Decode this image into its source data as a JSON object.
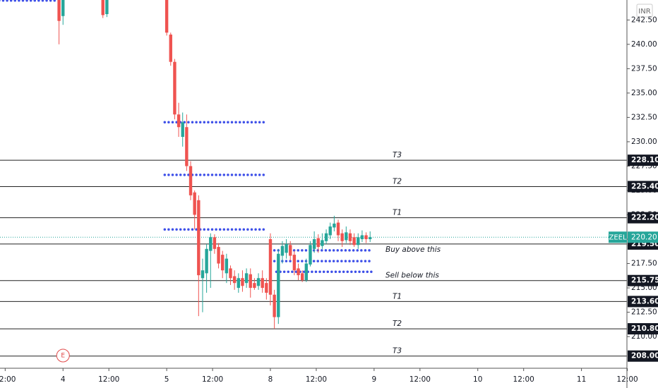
{
  "chart_data": {
    "type": "candlestick",
    "currency": "INR",
    "x": [
      -27,
      -26,
      -16,
      -15,
      0,
      1,
      2,
      3,
      4,
      5,
      6,
      7,
      8,
      9,
      10,
      11,
      12,
      13,
      14,
      15,
      16,
      17,
      18,
      19,
      20,
      21,
      22,
      23,
      24,
      25,
      26,
      27,
      28,
      29,
      30,
      31,
      32,
      33,
      34,
      35,
      36,
      37,
      38,
      39,
      40,
      41,
      42,
      43,
      44,
      45,
      46,
      47,
      48,
      49,
      50,
      51
    ],
    "open": [
      245,
      242.9,
      245,
      243.1,
      245,
      241,
      238.2,
      232.8,
      230.5,
      231.5,
      227.5,
      224.8,
      224,
      216,
      216.5,
      218.8,
      220.2,
      219.2,
      218.4,
      216.5,
      217,
      216.2,
      215,
      216,
      215.5,
      216.4,
      215.5,
      215.2,
      216,
      215.5,
      220,
      214.3,
      212,
      218.3,
      218.6,
      219.4,
      218.4,
      217,
      216.5,
      215.8,
      217.4,
      219,
      220.1,
      219.3,
      219.8,
      220.4,
      221.2,
      221.7,
      220.6,
      219.9,
      220.6,
      220.2,
      219.4,
      220,
      220.4,
      220
    ],
    "high": [
      245.5,
      245.5,
      245.5,
      245.5,
      245.5,
      241.2,
      238.5,
      234,
      233,
      232.8,
      228,
      225,
      224.5,
      218,
      219.5,
      220.6,
      220.5,
      219.6,
      218.8,
      218.5,
      217.3,
      216.8,
      216.5,
      216.8,
      217,
      217,
      216,
      216.5,
      216.8,
      216,
      220.6,
      214.8,
      219,
      219.8,
      220,
      219.8,
      218.8,
      217.5,
      216.8,
      218,
      219.8,
      220.8,
      220.5,
      220.6,
      221,
      221.7,
      222.4,
      222,
      221,
      221.3,
      221,
      220.6,
      220.6,
      220.9,
      220.7,
      220.8
    ],
    "low": [
      240,
      242,
      242.7,
      242.8,
      240.9,
      237.8,
      232.3,
      230.5,
      229.5,
      227,
      224,
      221,
      212.1,
      212.5,
      214.5,
      215,
      218.5,
      217,
      216,
      215.5,
      215.3,
      214.8,
      214.5,
      214.6,
      215,
      214,
      214.8,
      214.8,
      214.5,
      213.8,
      213.2,
      210.8,
      211.3,
      217.5,
      218,
      217.8,
      216.3,
      215.8,
      215.6,
      215.6,
      217.2,
      218.6,
      218.6,
      219,
      219.5,
      220,
      220.8,
      219.8,
      219.2,
      219.6,
      219.4,
      219.2,
      219,
      219.7,
      219.6,
      219.7
    ],
    "close": [
      242.4,
      245,
      243,
      245,
      241.2,
      238.2,
      232.8,
      231.5,
      232,
      227.5,
      224.5,
      222.5,
      216.3,
      216.8,
      219,
      220.2,
      219,
      217.5,
      216.8,
      218,
      216,
      215.5,
      216,
      215.2,
      216.5,
      215,
      215,
      216,
      215,
      214.5,
      214.3,
      212,
      218.5,
      219.3,
      219.5,
      218.3,
      216.8,
      216.3,
      215.8,
      217.5,
      219.4,
      220,
      219.2,
      219.9,
      220.6,
      221.3,
      221.6,
      220.4,
      219.8,
      220.7,
      219.8,
      219.4,
      220.2,
      220.4,
      220,
      220.2
    ],
    "up_color": "#26a69a",
    "down_color": "#ef5350",
    "xlim": [
      -41.8,
      115.4
    ],
    "xticks": [
      {
        "value": -40.5,
        "label": "12:00"
      },
      {
        "value": -26,
        "label": "4"
      },
      {
        "value": -14.5,
        "label": "12:00"
      },
      {
        "value": 0,
        "label": "5"
      },
      {
        "value": 11.5,
        "label": "12:00"
      },
      {
        "value": 26,
        "label": "8"
      },
      {
        "value": 37.5,
        "label": "12:00"
      },
      {
        "value": 52,
        "label": "9"
      },
      {
        "value": 63.5,
        "label": "12:00"
      },
      {
        "value": 78,
        "label": "10"
      },
      {
        "value": 89.5,
        "label": "12:00"
      },
      {
        "value": 104,
        "label": "11"
      },
      {
        "value": 115.5,
        "label": "12:00"
      }
    ],
    "ylim": [
      206.75,
      244.55
    ],
    "yticks": [
      {
        "value": 210,
        "label": "210.00"
      },
      {
        "value": 212.5,
        "label": "212.50"
      },
      {
        "value": 215,
        "label": "215.00"
      },
      {
        "value": 217.5,
        "label": "217.50"
      },
      {
        "value": 220,
        "label": "220.00"
      },
      {
        "value": 222.5,
        "label": "222.50"
      },
      {
        "value": 225,
        "label": "225.00"
      },
      {
        "value": 227.5,
        "label": "227.50"
      },
      {
        "value": 230,
        "label": "230.00"
      },
      {
        "value": 232.5,
        "label": "232.50"
      },
      {
        "value": 235,
        "label": "235.00"
      },
      {
        "value": 237.5,
        "label": "237.50"
      },
      {
        "value": 240,
        "label": "240.00"
      },
      {
        "value": 242.5,
        "label": "242.50"
      }
    ],
    "levels": [
      {
        "value": 228.1,
        "label": "228.10",
        "tag": "T3"
      },
      {
        "value": 225.4,
        "label": "225.40",
        "tag": "T2"
      },
      {
        "value": 222.2,
        "label": "222.20",
        "tag": "T1"
      },
      {
        "value": 219.5,
        "label": "219.50",
        "tag": "Buy above this"
      },
      {
        "value": 215.75,
        "label": "215.75",
        "tag": "Sell below this"
      },
      {
        "value": 213.6,
        "label": "213.60",
        "tag": "T1"
      },
      {
        "value": 210.8,
        "label": "210.80",
        "tag": "T2"
      },
      {
        "value": 208,
        "label": "208.00",
        "tag": "T3"
      }
    ],
    "last_price": {
      "name": "ZEEL",
      "value": 220.2,
      "label": "220.20",
      "color": "#26a69a"
    },
    "dot_levels": [
      {
        "value": 244.5,
        "x0": -42,
        "x1": -28
      },
      {
        "value": 232,
        "x0": -0.5,
        "x1": 25.2
      },
      {
        "value": 226.6,
        "x0": -0.5,
        "x1": 25.2
      },
      {
        "value": 221,
        "x0": -0.5,
        "x1": 25.2
      },
      {
        "value": 218.85,
        "x0": 27,
        "x1": 51.5
      },
      {
        "value": 217.75,
        "x0": 27,
        "x1": 51.5
      },
      {
        "value": 216.65,
        "x0": 27.5,
        "x1": 51.5
      }
    ],
    "dot_color": "#3d4fe8",
    "events": [
      {
        "x": -26,
        "label": "E"
      }
    ]
  }
}
